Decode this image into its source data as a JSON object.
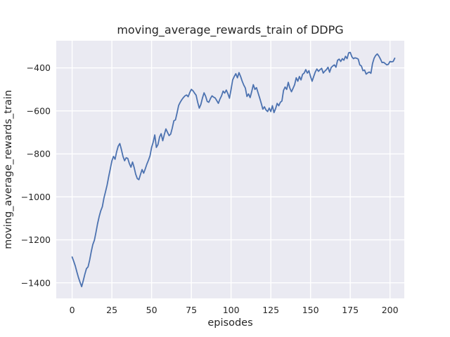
{
  "figure": {
    "background": "#ffffff"
  },
  "chart_data": {
    "type": "line",
    "title": "moving_average_rewards_train of DDPG",
    "xlabel": "episodes",
    "ylabel": "moving_average_rewards_train",
    "grid": true,
    "legend": null,
    "x_ticks": [
      0,
      25,
      50,
      75,
      100,
      125,
      150,
      175,
      200
    ],
    "x_tick_labels": [
      "0",
      "25",
      "50",
      "75",
      "100",
      "125",
      "150",
      "175",
      "200"
    ],
    "y_ticks": [
      -400,
      -600,
      -800,
      -1000,
      -1200,
      -1400
    ],
    "y_tick_labels": [
      "−400",
      "−600",
      "−800",
      "−1000",
      "−1200",
      "−1400"
    ],
    "xlim": [
      -10,
      209
    ],
    "ylim": [
      -1472.5,
      -273.5
    ],
    "colors": {
      "line": "#4c72b0",
      "plot_bg": "#eaeaf2",
      "grid": "#ffffff",
      "text": "#262626"
    },
    "series": [
      {
        "name": "moving_average_rewards_train",
        "x0": 0,
        "dx": 1,
        "values": [
          -1280,
          -1300,
          -1322,
          -1350,
          -1376,
          -1398,
          -1418,
          -1390,
          -1360,
          -1334,
          -1326,
          -1295,
          -1256,
          -1222,
          -1202,
          -1165,
          -1125,
          -1092,
          -1065,
          -1046,
          -1006,
          -976,
          -945,
          -906,
          -870,
          -833,
          -812,
          -825,
          -790,
          -764,
          -752,
          -780,
          -812,
          -832,
          -818,
          -821,
          -845,
          -862,
          -838,
          -863,
          -895,
          -915,
          -920,
          -896,
          -873,
          -890,
          -870,
          -848,
          -830,
          -809,
          -770,
          -745,
          -712,
          -770,
          -757,
          -722,
          -706,
          -739,
          -710,
          -684,
          -700,
          -715,
          -708,
          -680,
          -646,
          -642,
          -610,
          -575,
          -560,
          -548,
          -538,
          -530,
          -526,
          -534,
          -515,
          -500,
          -506,
          -517,
          -527,
          -560,
          -587,
          -570,
          -540,
          -516,
          -532,
          -556,
          -560,
          -543,
          -530,
          -536,
          -540,
          -552,
          -565,
          -545,
          -530,
          -508,
          -517,
          -503,
          -520,
          -541,
          -500,
          -456,
          -440,
          -427,
          -446,
          -422,
          -440,
          -462,
          -480,
          -494,
          -533,
          -521,
          -538,
          -510,
          -478,
          -500,
          -492,
          -516,
          -540,
          -565,
          -592,
          -581,
          -596,
          -603,
          -587,
          -603,
          -576,
          -608,
          -590,
          -565,
          -576,
          -560,
          -554,
          -505,
          -489,
          -500,
          -467,
          -494,
          -511,
          -495,
          -478,
          -446,
          -462,
          -440,
          -456,
          -430,
          -424,
          -408,
          -424,
          -413,
          -440,
          -462,
          -440,
          -419,
          -405,
          -416,
          -408,
          -402,
          -424,
          -415,
          -408,
          -397,
          -420,
          -398,
          -391,
          -386,
          -397,
          -365,
          -359,
          -370,
          -357,
          -364,
          -346,
          -357,
          -330,
          -328,
          -348,
          -357,
          -353,
          -355,
          -359,
          -386,
          -391,
          -413,
          -410,
          -429,
          -423,
          -419,
          -425,
          -380,
          -355,
          -342,
          -335,
          -345,
          -359,
          -375,
          -374,
          -380,
          -386,
          -383,
          -370,
          -372,
          -370,
          -355
        ]
      }
    ]
  }
}
